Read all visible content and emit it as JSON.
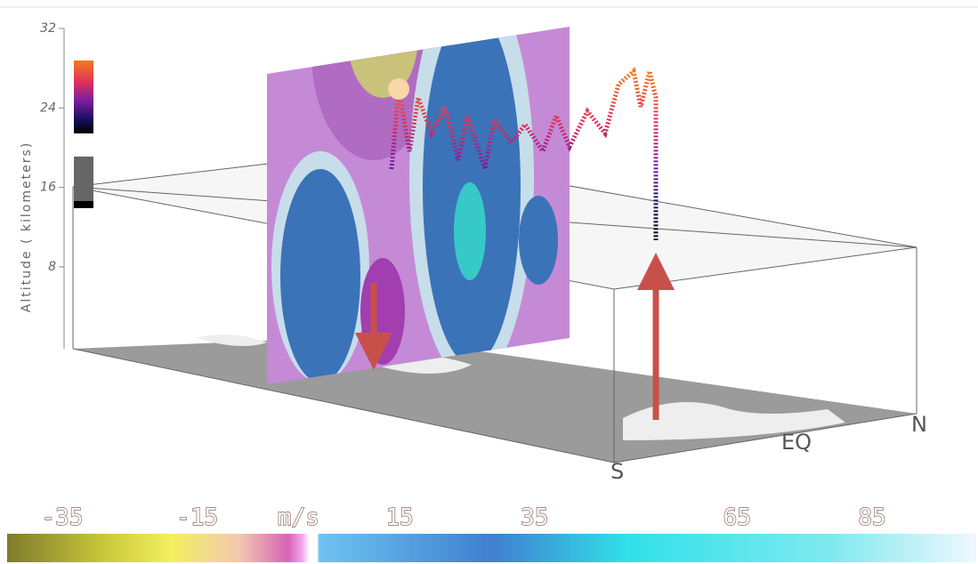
{
  "altitude_axis": {
    "label": "Altitude ( kilometers)",
    "ticks": [
      32,
      24,
      16,
      8
    ]
  },
  "directions": {
    "south": "S",
    "equator": "EQ",
    "north": "N"
  },
  "colorbar": {
    "unit": "m/s",
    "ticks": [
      -35,
      -15,
      15,
      35,
      65,
      85
    ]
  }
}
